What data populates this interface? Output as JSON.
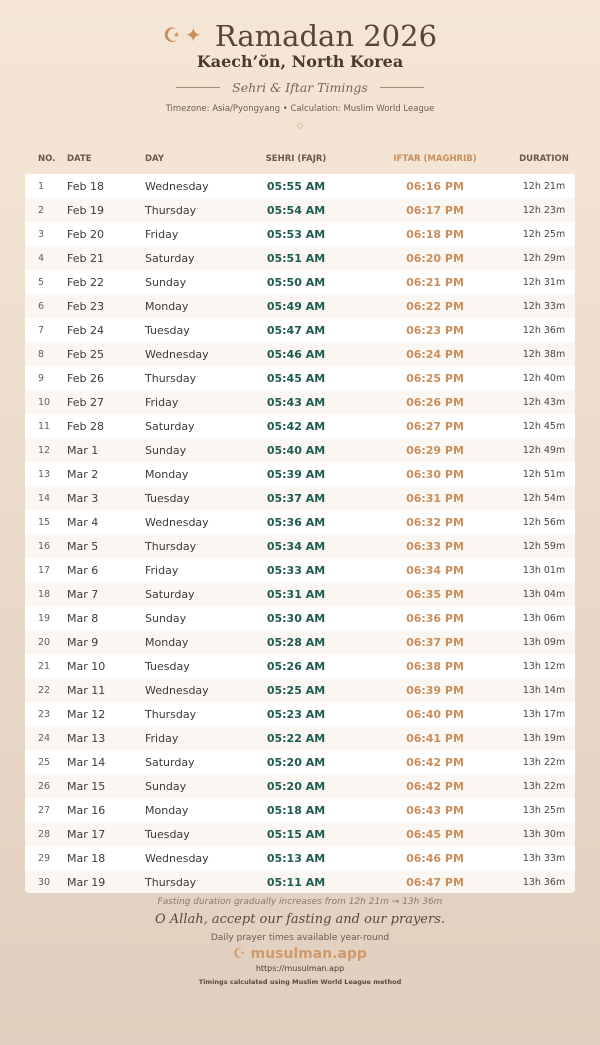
{
  "header": {
    "icon_moon": "☪",
    "icon_star": "✦",
    "title": "Ramadan 2026",
    "city": "Kaech’ŏn, North Korea",
    "subtitle": "Sehri & Iftar Timings",
    "meta": "Timezone: Asia/Pyongyang • Calculation: Muslim World League",
    "ornament": "◇"
  },
  "table": {
    "headers": [
      "NO.",
      "DATE",
      "DAY",
      "SEHRI (FAJR)",
      "IFTAR (MAGHRIB)",
      "DURATION"
    ],
    "rows": [
      [
        "1",
        "Feb 18",
        "Wednesday",
        "05:55 AM",
        "06:16 PM",
        "12h 21m"
      ],
      [
        "2",
        "Feb 19",
        "Thursday",
        "05:54 AM",
        "06:17 PM",
        "12h 23m"
      ],
      [
        "3",
        "Feb 20",
        "Friday",
        "05:53 AM",
        "06:18 PM",
        "12h 25m"
      ],
      [
        "4",
        "Feb 21",
        "Saturday",
        "05:51 AM",
        "06:20 PM",
        "12h 29m"
      ],
      [
        "5",
        "Feb 22",
        "Sunday",
        "05:50 AM",
        "06:21 PM",
        "12h 31m"
      ],
      [
        "6",
        "Feb 23",
        "Monday",
        "05:49 AM",
        "06:22 PM",
        "12h 33m"
      ],
      [
        "7",
        "Feb 24",
        "Tuesday",
        "05:47 AM",
        "06:23 PM",
        "12h 36m"
      ],
      [
        "8",
        "Feb 25",
        "Wednesday",
        "05:46 AM",
        "06:24 PM",
        "12h 38m"
      ],
      [
        "9",
        "Feb 26",
        "Thursday",
        "05:45 AM",
        "06:25 PM",
        "12h 40m"
      ],
      [
        "10",
        "Feb 27",
        "Friday",
        "05:43 AM",
        "06:26 PM",
        "12h 43m"
      ],
      [
        "11",
        "Feb 28",
        "Saturday",
        "05:42 AM",
        "06:27 PM",
        "12h 45m"
      ],
      [
        "12",
        "Mar 1",
        "Sunday",
        "05:40 AM",
        "06:29 PM",
        "12h 49m"
      ],
      [
        "13",
        "Mar 2",
        "Monday",
        "05:39 AM",
        "06:30 PM",
        "12h 51m"
      ],
      [
        "14",
        "Mar 3",
        "Tuesday",
        "05:37 AM",
        "06:31 PM",
        "12h 54m"
      ],
      [
        "15",
        "Mar 4",
        "Wednesday",
        "05:36 AM",
        "06:32 PM",
        "12h 56m"
      ],
      [
        "16",
        "Mar 5",
        "Thursday",
        "05:34 AM",
        "06:33 PM",
        "12h 59m"
      ],
      [
        "17",
        "Mar 6",
        "Friday",
        "05:33 AM",
        "06:34 PM",
        "13h 01m"
      ],
      [
        "18",
        "Mar 7",
        "Saturday",
        "05:31 AM",
        "06:35 PM",
        "13h 04m"
      ],
      [
        "19",
        "Mar 8",
        "Sunday",
        "05:30 AM",
        "06:36 PM",
        "13h 06m"
      ],
      [
        "20",
        "Mar 9",
        "Monday",
        "05:28 AM",
        "06:37 PM",
        "13h 09m"
      ],
      [
        "21",
        "Mar 10",
        "Tuesday",
        "05:26 AM",
        "06:38 PM",
        "13h 12m"
      ],
      [
        "22",
        "Mar 11",
        "Wednesday",
        "05:25 AM",
        "06:39 PM",
        "13h 14m"
      ],
      [
        "23",
        "Mar 12",
        "Thursday",
        "05:23 AM",
        "06:40 PM",
        "13h 17m"
      ],
      [
        "24",
        "Mar 13",
        "Friday",
        "05:22 AM",
        "06:41 PM",
        "13h 19m"
      ],
      [
        "25",
        "Mar 14",
        "Saturday",
        "05:20 AM",
        "06:42 PM",
        "13h 22m"
      ],
      [
        "26",
        "Mar 15",
        "Sunday",
        "05:20 AM",
        "06:42 PM",
        "13h 22m"
      ],
      [
        "27",
        "Mar 16",
        "Monday",
        "05:18 AM",
        "06:43 PM",
        "13h 25m"
      ],
      [
        "28",
        "Mar 17",
        "Tuesday",
        "05:15 AM",
        "06:45 PM",
        "13h 30m"
      ],
      [
        "29",
        "Mar 18",
        "Wednesday",
        "05:13 AM",
        "06:46 PM",
        "13h 33m"
      ],
      [
        "30",
        "Mar 19",
        "Thursday",
        "05:11 AM",
        "06:47 PM",
        "13h 36m"
      ]
    ]
  },
  "footer": {
    "note": "Fasting duration gradually increases from 12h 21m → 13h 36m",
    "dua": "O Allah, accept our fasting and our prayers.",
    "available": "Daily prayer times available year-round",
    "brand_icon": "☪",
    "brand": "musulman.app",
    "url": "https://musulman.app",
    "calc": "Timings calculated using Muslim World League method"
  }
}
